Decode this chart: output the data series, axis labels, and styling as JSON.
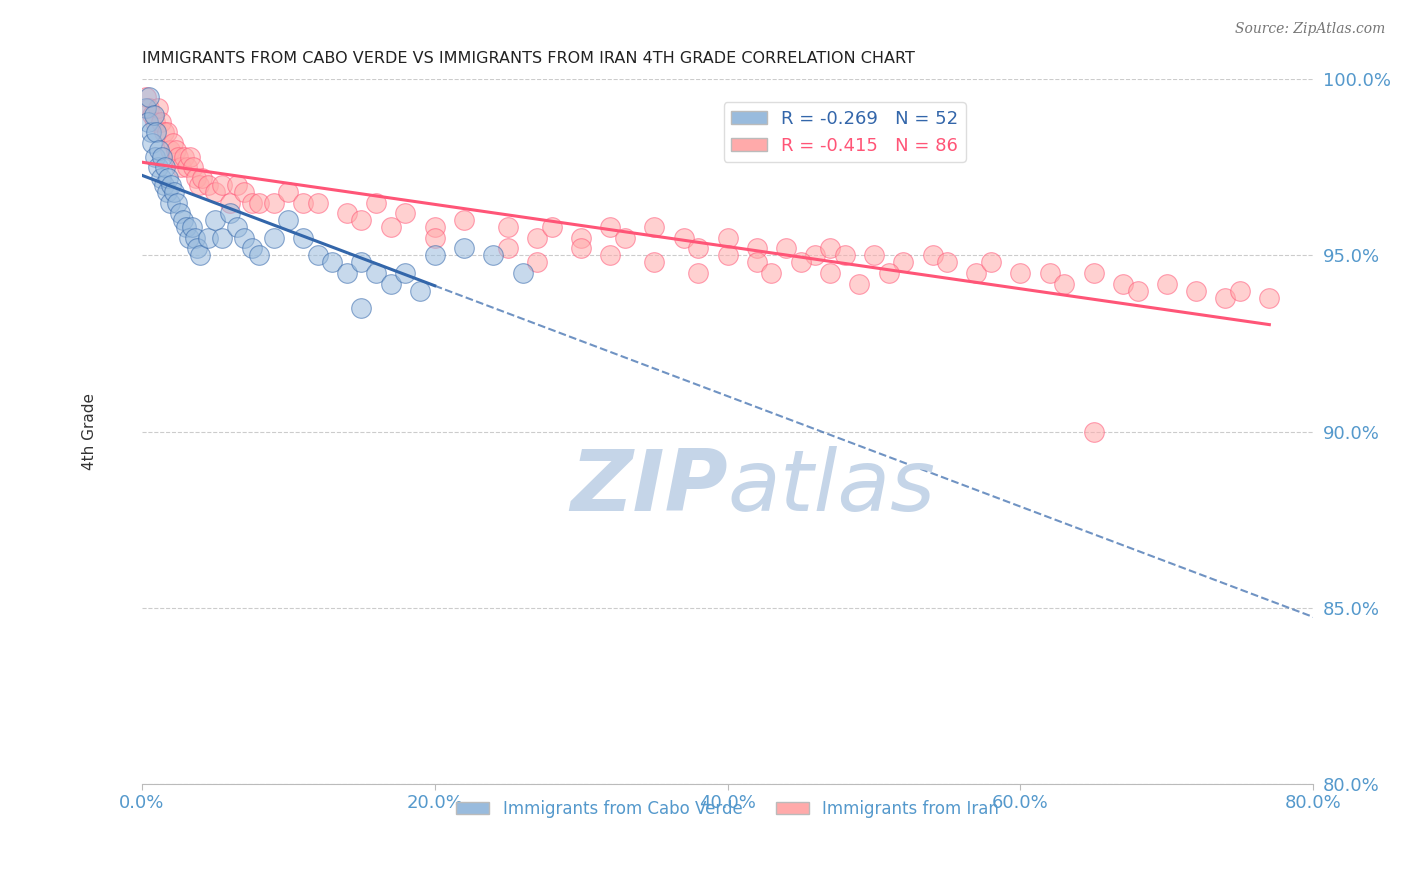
{
  "title": "IMMIGRANTS FROM CABO VERDE VS IMMIGRANTS FROM IRAN 4TH GRADE CORRELATION CHART",
  "source": "Source: ZipAtlas.com",
  "ylabel_left": "4th Grade",
  "legend_label1": "Immigrants from Cabo Verde",
  "legend_label2": "Immigrants from Iran",
  "R1": -0.269,
  "N1": 52,
  "R2": -0.415,
  "N2": 86,
  "xmin": 0.0,
  "xmax": 80.0,
  "ymin": 80.0,
  "ymax": 100.0,
  "yticks": [
    80.0,
    85.0,
    90.0,
    95.0,
    100.0
  ],
  "xticks": [
    0.0,
    20.0,
    40.0,
    60.0,
    80.0
  ],
  "color_blue": "#99BBDD",
  "color_pink": "#FFAAAA",
  "color_blue_line": "#3366AA",
  "color_pink_line": "#FF5577",
  "watermark_color": "#C5D5E8",
  "cabo_verde_x": [
    0.3,
    0.4,
    0.5,
    0.6,
    0.7,
    0.8,
    0.9,
    1.0,
    1.1,
    1.2,
    1.3,
    1.4,
    1.5,
    1.6,
    1.7,
    1.8,
    1.9,
    2.0,
    2.2,
    2.4,
    2.6,
    2.8,
    3.0,
    3.2,
    3.4,
    3.6,
    3.8,
    4.0,
    4.5,
    5.0,
    5.5,
    6.0,
    6.5,
    7.0,
    7.5,
    8.0,
    9.0,
    10.0,
    11.0,
    12.0,
    13.0,
    14.0,
    15.0,
    16.0,
    17.0,
    18.0,
    19.0,
    20.0,
    22.0,
    24.0,
    26.0,
    15.0
  ],
  "cabo_verde_y": [
    99.2,
    98.8,
    99.5,
    98.5,
    98.2,
    99.0,
    97.8,
    98.5,
    97.5,
    98.0,
    97.2,
    97.8,
    97.0,
    97.5,
    96.8,
    97.2,
    96.5,
    97.0,
    96.8,
    96.5,
    96.2,
    96.0,
    95.8,
    95.5,
    95.8,
    95.5,
    95.2,
    95.0,
    95.5,
    96.0,
    95.5,
    96.2,
    95.8,
    95.5,
    95.2,
    95.0,
    95.5,
    96.0,
    95.5,
    95.0,
    94.8,
    94.5,
    94.8,
    94.5,
    94.2,
    94.5,
    94.0,
    95.0,
    95.2,
    95.0,
    94.5,
    93.5
  ],
  "iran_x": [
    0.3,
    0.5,
    0.7,
    0.9,
    1.1,
    1.3,
    1.5,
    1.7,
    1.9,
    2.1,
    2.3,
    2.5,
    2.7,
    2.9,
    3.1,
    3.3,
    3.5,
    3.7,
    3.9,
    4.1,
    4.5,
    5.0,
    5.5,
    6.0,
    6.5,
    7.0,
    7.5,
    8.0,
    9.0,
    10.0,
    11.0,
    12.0,
    14.0,
    16.0,
    18.0,
    20.0,
    22.0,
    25.0,
    27.0,
    28.0,
    30.0,
    32.0,
    33.0,
    35.0,
    37.0,
    38.0,
    40.0,
    42.0,
    44.0,
    46.0,
    47.0,
    48.0,
    50.0,
    52.0,
    54.0,
    55.0,
    57.0,
    58.0,
    60.0,
    62.0,
    63.0,
    65.0,
    67.0,
    68.0,
    70.0,
    72.0,
    74.0,
    75.0,
    77.0,
    15.0,
    17.0,
    20.0,
    25.0,
    27.0,
    30.0,
    32.0,
    35.0,
    38.0,
    40.0,
    42.0,
    43.0,
    45.0,
    47.0,
    49.0,
    51.0,
    65.0
  ],
  "iran_y": [
    99.5,
    99.2,
    99.0,
    98.8,
    99.2,
    98.8,
    98.5,
    98.5,
    98.0,
    98.2,
    98.0,
    97.8,
    97.5,
    97.8,
    97.5,
    97.8,
    97.5,
    97.2,
    97.0,
    97.2,
    97.0,
    96.8,
    97.0,
    96.5,
    97.0,
    96.8,
    96.5,
    96.5,
    96.5,
    96.8,
    96.5,
    96.5,
    96.2,
    96.5,
    96.2,
    95.8,
    96.0,
    95.8,
    95.5,
    95.8,
    95.5,
    95.8,
    95.5,
    95.8,
    95.5,
    95.2,
    95.5,
    95.2,
    95.2,
    95.0,
    95.2,
    95.0,
    95.0,
    94.8,
    95.0,
    94.8,
    94.5,
    94.8,
    94.5,
    94.5,
    94.2,
    94.5,
    94.2,
    94.0,
    94.2,
    94.0,
    93.8,
    94.0,
    93.8,
    96.0,
    95.8,
    95.5,
    95.2,
    94.8,
    95.2,
    95.0,
    94.8,
    94.5,
    95.0,
    94.8,
    94.5,
    94.8,
    94.5,
    94.2,
    94.5,
    90.0
  ]
}
